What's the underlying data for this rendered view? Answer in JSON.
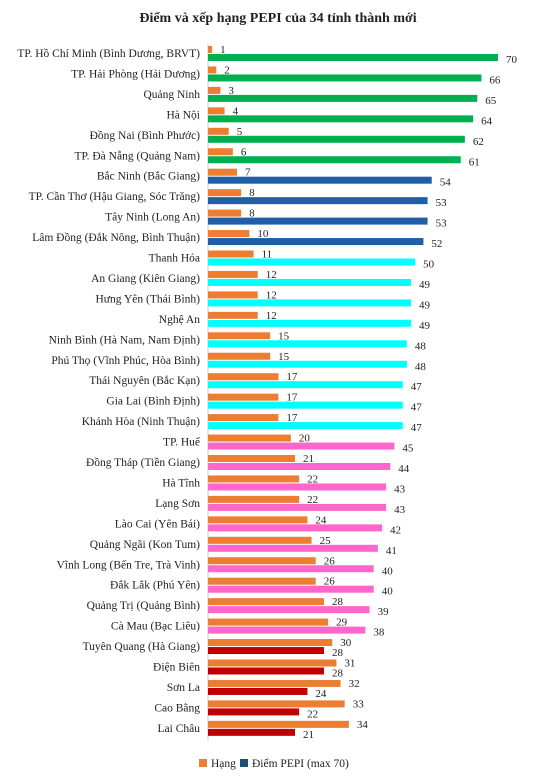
{
  "chart_data": {
    "type": "bar",
    "orientation": "horizontal",
    "title": "Điểm và xếp hạng PEPI của 34 tỉnh thành mới",
    "categories": [
      "TP. Hồ Chí Minh (Bình Dương, BRVT)",
      "TP. Hải Phòng (Hải Dương)",
      "Quảng Ninh",
      "Hà Nội",
      "Đồng Nai (Bình Phước)",
      "TP. Đà Nẵng (Quảng Nam)",
      "Bắc Ninh (Bắc Giang)",
      "TP. Cần Thơ (Hậu Giang, Sóc Trăng)",
      "Tây Ninh (Long An)",
      "Lâm Đồng (Đắk Nông, Bình Thuận)",
      "Thanh Hóa",
      "An Giang (Kiên Giang)",
      "Hưng Yên (Thái Bình)",
      "Nghệ An",
      "Ninh Bình (Hà Nam, Nam Định)",
      "Phú Thọ (Vĩnh Phúc, Hòa Bình)",
      "Thái Nguyên (Bắc Kạn)",
      "Gia Lai (Bình Định)",
      "Khánh Hòa (Ninh Thuận)",
      "TP. Huế",
      "Đồng Tháp (Tiền Giang)",
      "Hà Tĩnh",
      "Lạng Sơn",
      "Lào Cai (Yên Bái)",
      "Quảng Ngãi (Kon Tum)",
      "Vĩnh Long (Bến Tre, Trà Vinh)",
      "Đắk Lắk (Phú Yên)",
      "Quảng Trị (Quảng Bình)",
      "Cà Mau (Bạc Liêu)",
      "Tuyên Quang (Hà Giang)",
      "Điện Biên",
      "Sơn La",
      "Cao Bằng",
      "Lai Châu"
    ],
    "series": [
      {
        "name": "Hạng",
        "color": "#ED7D31",
        "values": [
          1,
          2,
          3,
          4,
          5,
          6,
          7,
          8,
          8,
          10,
          11,
          12,
          12,
          12,
          15,
          15,
          17,
          17,
          17,
          20,
          21,
          22,
          22,
          24,
          25,
          26,
          26,
          28,
          29,
          30,
          31,
          32,
          33,
          34
        ]
      },
      {
        "name": "Điểm PEPI (max 70)",
        "color": "#1F4E79",
        "values": [
          70,
          66,
          65,
          64,
          62,
          61,
          54,
          53,
          53,
          52,
          50,
          49,
          49,
          49,
          48,
          48,
          47,
          47,
          47,
          45,
          44,
          43,
          43,
          42,
          41,
          40,
          40,
          39,
          38,
          28,
          28,
          24,
          22,
          21
        ],
        "point_colors": [
          "#00B050",
          "#00B050",
          "#00B050",
          "#00B050",
          "#00B050",
          "#00B050",
          "#1F5FA8",
          "#1F5FA8",
          "#1F5FA8",
          "#1F5FA8",
          "#00FFFF",
          "#00FFFF",
          "#00FFFF",
          "#00FFFF",
          "#00FFFF",
          "#00FFFF",
          "#00FFFF",
          "#00FFFF",
          "#00FFFF",
          "#FF66CC",
          "#FF66CC",
          "#FF66CC",
          "#FF66CC",
          "#FF66CC",
          "#FF66CC",
          "#FF66CC",
          "#FF66CC",
          "#FF66CC",
          "#FF66CC",
          "#C00000",
          "#C00000",
          "#C00000",
          "#C00000",
          "#C00000"
        ]
      }
    ],
    "xlim": [
      0,
      70
    ],
    "grid": false,
    "legend_position": "bottom"
  }
}
